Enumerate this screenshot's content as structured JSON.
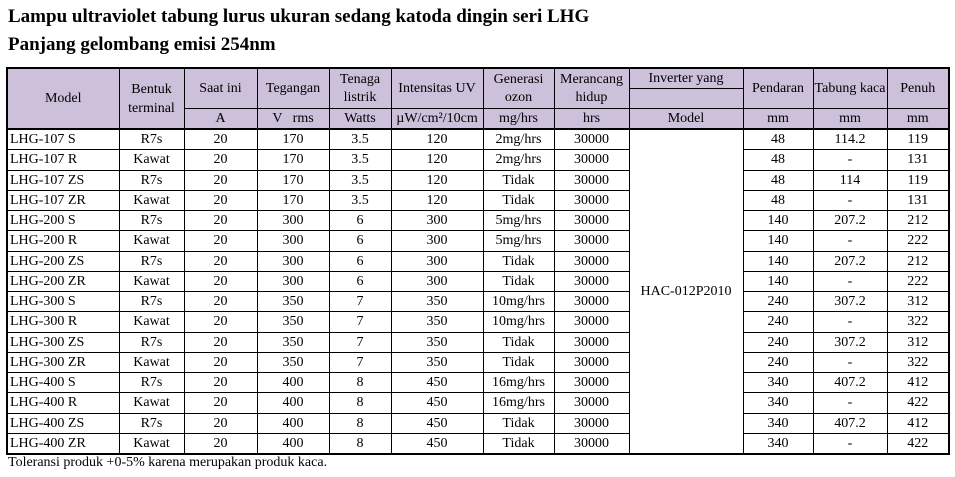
{
  "title_line1": "Lampu ultraviolet tabung lurus ukuran sedang katoda dingin seri LHG",
  "title_line2": "Panjang gelombang emisi 254nm",
  "header": {
    "model": "Model",
    "terminal": "Bentuk terminal",
    "current": "Saat ini",
    "current_unit": "A",
    "voltage": "Tegangan",
    "voltage_unit": "V   rms",
    "power": "Tenaga listrik",
    "power_unit": "Watts",
    "uv": "Intensitas UV",
    "uv_unit": "µW/cm²/10cm",
    "ozone": "Generasi ozon",
    "ozone_unit": "mg/hrs",
    "life": "Merancang hidup",
    "life_unit": "hrs",
    "inverter": "Inverter yang",
    "inverter_unit": "Model",
    "glow": "Pendaran",
    "glow_unit": "mm",
    "tube": "Tabung kaca",
    "tube_unit": "mm",
    "full": "Penuh",
    "full_unit": "mm"
  },
  "inverter_model": "HAC-012P2010",
  "rows": [
    [
      "LHG-107 S",
      "R7s",
      "20",
      "170",
      "3.5",
      "120",
      "2mg/hrs",
      "30000",
      "48",
      "114.2",
      "119"
    ],
    [
      "LHG-107 R",
      "Kawat",
      "20",
      "170",
      "3.5",
      "120",
      "2mg/hrs",
      "30000",
      "48",
      "-",
      "131"
    ],
    [
      "LHG-107 ZS",
      "R7s",
      "20",
      "170",
      "3.5",
      "120",
      "Tidak",
      "30000",
      "48",
      "114",
      "119"
    ],
    [
      "LHG-107 ZR",
      "Kawat",
      "20",
      "170",
      "3.5",
      "120",
      "Tidak",
      "30000",
      "48",
      "-",
      "131"
    ],
    [
      "LHG-200 S",
      "R7s",
      "20",
      "300",
      "6",
      "300",
      "5mg/hrs",
      "30000",
      "140",
      "207.2",
      "212"
    ],
    [
      "LHG-200 R",
      "Kawat",
      "20",
      "300",
      "6",
      "300",
      "5mg/hrs",
      "30000",
      "140",
      "-",
      "222"
    ],
    [
      "LHG-200 ZS",
      "R7s",
      "20",
      "300",
      "6",
      "300",
      "Tidak",
      "30000",
      "140",
      "207.2",
      "212"
    ],
    [
      "LHG-200 ZR",
      "Kawat",
      "20",
      "300",
      "6",
      "300",
      "Tidak",
      "30000",
      "140",
      "-",
      "222"
    ],
    [
      "LHG-300 S",
      "R7s",
      "20",
      "350",
      "7",
      "350",
      "10mg/hrs",
      "30000",
      "240",
      "307.2",
      "312"
    ],
    [
      "LHG-300 R",
      "Kawat",
      "20",
      "350",
      "7",
      "350",
      "10mg/hrs",
      "30000",
      "240",
      "-",
      "322"
    ],
    [
      "LHG-300 ZS",
      "R7s",
      "20",
      "350",
      "7",
      "350",
      "Tidak",
      "30000",
      "240",
      "307.2",
      "312"
    ],
    [
      "LHG-300 ZR",
      "Kawat",
      "20",
      "350",
      "7",
      "350",
      "Tidak",
      "30000",
      "240",
      "-",
      "322"
    ],
    [
      "LHG-400 S",
      "R7s",
      "20",
      "400",
      "8",
      "450",
      "16mg/hrs",
      "30000",
      "340",
      "407.2",
      "412"
    ],
    [
      "LHG-400 R",
      "Kawat",
      "20",
      "400",
      "8",
      "450",
      "16mg/hrs",
      "30000",
      "340",
      "-",
      "422"
    ],
    [
      "LHG-400 ZS",
      "R7s",
      "20",
      "400",
      "8",
      "450",
      "Tidak",
      "30000",
      "340",
      "407.2",
      "412"
    ],
    [
      "LHG-400 ZR",
      "Kawat",
      "20",
      "400",
      "8",
      "450",
      "Tidak",
      "30000",
      "340",
      "-",
      "422"
    ]
  ],
  "note": "Toleransi produk +0-5% karena merupakan produk kaca.",
  "colors": {
    "header_bg": "#ccc0da"
  }
}
